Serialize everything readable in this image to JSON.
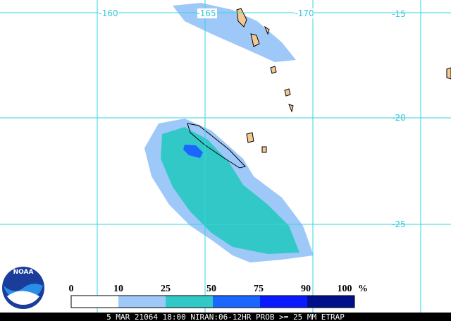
{
  "grid": {
    "lon_labels": [
      "-160",
      "-165",
      "-170"
    ],
    "lat_labels": [
      "-15",
      "-20",
      "-25"
    ]
  },
  "logo_text": "NOAA",
  "legend": {
    "labels": [
      "0",
      "10",
      "25",
      "50",
      "75",
      "90",
      "100"
    ],
    "unit": "%"
  },
  "footer": {
    "text": "5 MAR 21064 18:00 NIRAN:06-12HR PROB >= 25 MM ETRAP"
  }
}
